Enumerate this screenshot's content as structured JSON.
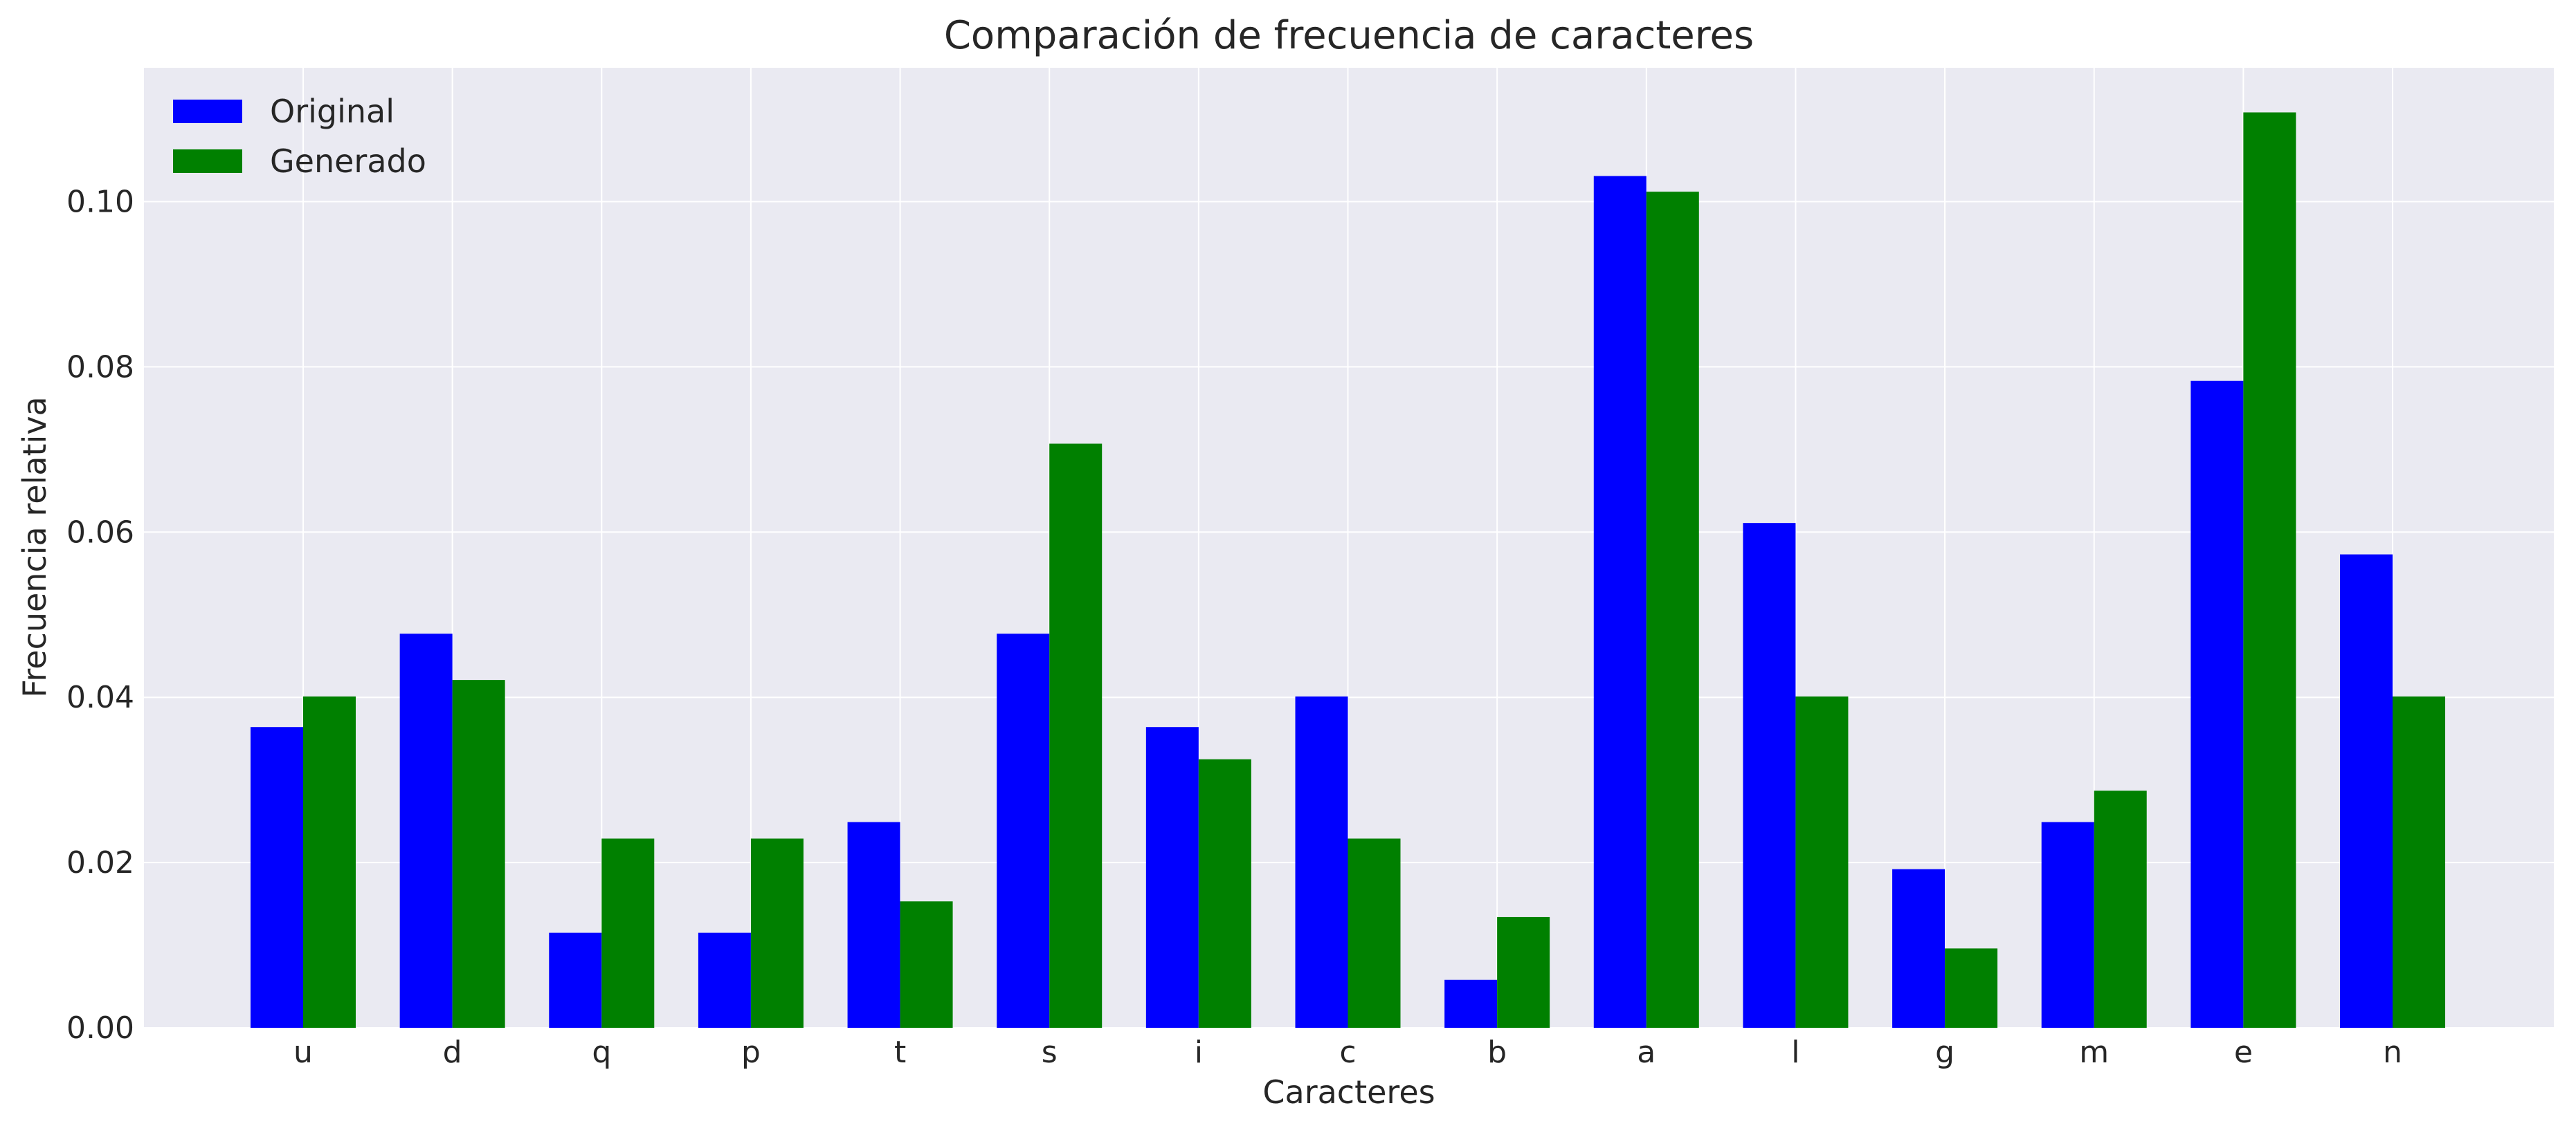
{
  "chart_data": {
    "type": "bar",
    "title": "Comparación de frecuencia de caracteres",
    "xlabel": "Caracteres",
    "ylabel": "Frecuencia relativa",
    "categories": [
      "u",
      "d",
      "q",
      "p",
      "t",
      "s",
      "i",
      "c",
      "b",
      "a",
      "l",
      "g",
      "m",
      "e",
      "n"
    ],
    "series": [
      {
        "name": "Original",
        "color": "#0000ff",
        "values": [
          0.0364,
          0.0477,
          0.0115,
          0.0115,
          0.0249,
          0.0477,
          0.0364,
          0.0401,
          0.0058,
          0.1031,
          0.0611,
          0.0192,
          0.0249,
          0.0783,
          0.0573
        ]
      },
      {
        "name": "Generado",
        "color": "#008000",
        "values": [
          0.0401,
          0.0421,
          0.0229,
          0.0229,
          0.0153,
          0.0707,
          0.0325,
          0.0229,
          0.0134,
          0.1012,
          0.0401,
          0.0096,
          0.0287,
          0.1108,
          0.0401
        ]
      }
    ],
    "ylim": [
      0,
      0.1162
    ],
    "yticks": [
      "0.00",
      "0.02",
      "0.04",
      "0.06",
      "0.08",
      "0.10"
    ],
    "grid": true,
    "legend_position": "top-left",
    "background_color": "#eaeaf2",
    "grid_color": "#ffffff"
  }
}
